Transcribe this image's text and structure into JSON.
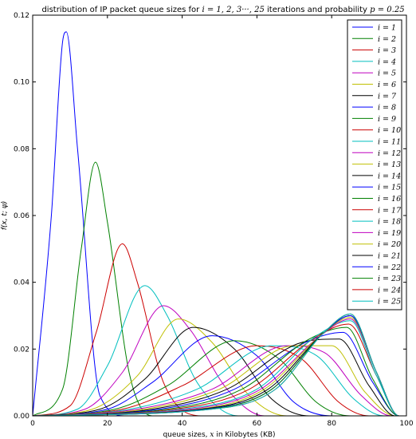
{
  "chart_data": {
    "type": "line",
    "title_prefix": "distribution of IP packet queue sizes  for ",
    "title_math_1": "i = 1, 2, 3···, 25",
    "title_middle": " iterations and probability ",
    "title_math_2": "p = 0.25",
    "xlabel_prefix": "queue sizes, ",
    "xlabel_math": "x",
    "xlabel_suffix": " in Kilobytes (KB)",
    "ylabel": "f(x, t; ψ)",
    "xlim": [
      0,
      100
    ],
    "ylim": [
      0,
      0.12
    ],
    "x_ticks": [
      "0",
      "20",
      "40",
      "60",
      "80",
      "100"
    ],
    "y_ticks": [
      "0.00",
      "0.02",
      "0.04",
      "0.06",
      "0.08",
      "0.10",
      "0.12"
    ],
    "grid": false,
    "legend_position": "top-right",
    "colors": [
      "#0000ff",
      "#008000",
      "#cc0000",
      "#00bfbf",
      "#bf00bf",
      "#bfbf00",
      "#000000"
    ],
    "series": [
      {
        "name": "i = 1",
        "x": [
          0,
          5,
          8,
          9,
          12,
          18,
          25,
          100
        ],
        "values": [
          0.0,
          0.06,
          0.112,
          0.115,
          0.08,
          0.006,
          0.0,
          0.0
        ]
      },
      {
        "name": "i = 2",
        "x": [
          0,
          8,
          13,
          16.8,
          20,
          26,
          32,
          100
        ],
        "values": [
          0.0,
          0.008,
          0.05,
          0.076,
          0.058,
          0.012,
          0.0,
          0.0
        ]
      },
      {
        "name": "i = 3",
        "x": [
          0,
          10,
          17,
          24,
          28,
          35,
          45,
          100
        ],
        "values": [
          0.0,
          0.003,
          0.025,
          0.0515,
          0.04,
          0.01,
          0.0,
          0.0
        ]
      },
      {
        "name": "i = 4",
        "x": [
          0,
          12,
          20,
          30,
          36,
          44,
          55,
          100
        ],
        "values": [
          0.0,
          0.002,
          0.015,
          0.039,
          0.03,
          0.01,
          0.0,
          0.0
        ]
      },
      {
        "name": "i = 5",
        "x": [
          0,
          14,
          24,
          35,
          42,
          52,
          62,
          100
        ],
        "values": [
          0.0,
          0.002,
          0.013,
          0.033,
          0.026,
          0.008,
          0.0,
          0.0
        ]
      },
      {
        "name": "i = 6",
        "x": [
          0,
          16,
          28,
          39,
          48,
          58,
          68,
          100
        ],
        "values": [
          0.0,
          0.002,
          0.012,
          0.029,
          0.022,
          0.006,
          0.0,
          0.0
        ]
      },
      {
        "name": "i = 7",
        "x": [
          0,
          18,
          30,
          43,
          54,
          64,
          74,
          100
        ],
        "values": [
          0.0,
          0.002,
          0.011,
          0.0265,
          0.02,
          0.005,
          0.0,
          0.0
        ]
      },
      {
        "name": "i = 8",
        "x": [
          0,
          20,
          32,
          48,
          60,
          70,
          80,
          100
        ],
        "values": [
          0.0,
          0.002,
          0.01,
          0.024,
          0.018,
          0.004,
          0.0,
          0.0
        ]
      },
      {
        "name": "i = 9",
        "x": [
          0,
          22,
          36,
          54,
          66,
          76,
          85,
          100
        ],
        "values": [
          0.0,
          0.002,
          0.009,
          0.0225,
          0.017,
          0.004,
          0.0,
          0.0
        ]
      },
      {
        "name": "i = 10",
        "x": [
          0,
          24,
          40,
          60,
          72,
          82,
          90,
          100
        ],
        "values": [
          0.0,
          0.002,
          0.009,
          0.021,
          0.017,
          0.004,
          0.0,
          0.0
        ]
      },
      {
        "name": "i = 11",
        "x": [
          0,
          26,
          44,
          64,
          76,
          86,
          94,
          100
        ],
        "values": [
          0.0,
          0.002,
          0.008,
          0.021,
          0.018,
          0.005,
          0.0,
          0.0
        ]
      },
      {
        "name": "i = 12",
        "x": [
          0,
          28,
          48,
          68,
          78,
          88,
          96,
          100
        ],
        "values": [
          0.0,
          0.002,
          0.008,
          0.021,
          0.019,
          0.006,
          0.0,
          0.0
        ]
      },
      {
        "name": "i = 13",
        "x": [
          0,
          30,
          50,
          70,
          80,
          89,
          97,
          100
        ],
        "values": [
          0.0,
          0.002,
          0.008,
          0.021,
          0.021,
          0.007,
          0.0,
          0.0
        ]
      },
      {
        "name": "i = 14",
        "x": [
          0,
          32,
          52,
          72,
          82,
          90,
          97,
          100
        ],
        "values": [
          0.0,
          0.002,
          0.008,
          0.022,
          0.023,
          0.009,
          0.0,
          0.0
        ]
      },
      {
        "name": "i = 15",
        "x": [
          0,
          34,
          54,
          73,
          83,
          91,
          98,
          100
        ],
        "values": [
          0.0,
          0.002,
          0.008,
          0.022,
          0.025,
          0.01,
          0.0,
          0.0
        ]
      },
      {
        "name": "i = 16",
        "x": [
          0,
          36,
          56,
          74,
          84,
          91,
          98,
          100
        ],
        "values": [
          0.0,
          0.002,
          0.008,
          0.023,
          0.0265,
          0.011,
          0.0,
          0.0
        ]
      },
      {
        "name": "i = 17",
        "x": [
          0,
          38,
          58,
          75,
          84.5,
          92,
          98,
          100
        ],
        "values": [
          0.0,
          0.002,
          0.008,
          0.023,
          0.0275,
          0.012,
          0.0,
          0.0
        ]
      },
      {
        "name": "i = 18",
        "x": [
          0,
          40,
          60,
          76,
          85,
          92,
          98,
          100
        ],
        "values": [
          0.0,
          0.002,
          0.008,
          0.024,
          0.0285,
          0.012,
          0.0,
          0.0
        ]
      },
      {
        "name": "i = 19",
        "x": [
          0,
          42,
          61,
          77,
          85,
          92,
          98,
          100
        ],
        "values": [
          0.0,
          0.002,
          0.008,
          0.024,
          0.029,
          0.013,
          0.0,
          0.0
        ]
      },
      {
        "name": "i = 20",
        "x": [
          0,
          44,
          62,
          77,
          85,
          92,
          98,
          100
        ],
        "values": [
          0.0,
          0.002,
          0.008,
          0.024,
          0.0295,
          0.013,
          0.0,
          0.0
        ]
      },
      {
        "name": "i = 21",
        "x": [
          0,
          45,
          63,
          78,
          85,
          92,
          98,
          100
        ],
        "values": [
          0.0,
          0.002,
          0.008,
          0.025,
          0.03,
          0.013,
          0.0,
          0.0
        ]
      },
      {
        "name": "i = 22",
        "x": [
          0,
          46,
          64,
          78,
          85,
          92,
          98,
          100
        ],
        "values": [
          0.0,
          0.002,
          0.008,
          0.025,
          0.03,
          0.013,
          0.0,
          0.0
        ]
      },
      {
        "name": "i = 23",
        "x": [
          0,
          47,
          64,
          78,
          85,
          92,
          98,
          100
        ],
        "values": [
          0.0,
          0.002,
          0.008,
          0.025,
          0.0305,
          0.013,
          0.0,
          0.0
        ]
      },
      {
        "name": "i = 24",
        "x": [
          0,
          48,
          65,
          78,
          85,
          92,
          98,
          100
        ],
        "values": [
          0.0,
          0.002,
          0.008,
          0.025,
          0.0305,
          0.013,
          0.0,
          0.0
        ]
      },
      {
        "name": "i = 25",
        "x": [
          0,
          48,
          65,
          78,
          85,
          92,
          98,
          100
        ],
        "values": [
          0.0,
          0.002,
          0.008,
          0.025,
          0.0305,
          0.013,
          0.0,
          0.0
        ]
      }
    ]
  }
}
